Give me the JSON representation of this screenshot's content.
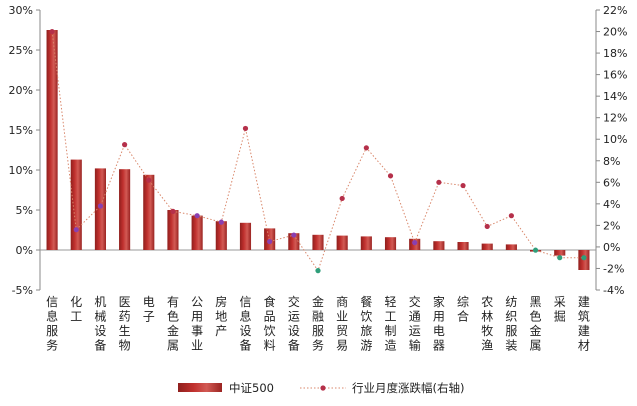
{
  "chart_data": {
    "type": "bar",
    "categories": [
      "信息服务",
      "化工",
      "机械设备",
      "医药生物",
      "电子",
      "有色金属",
      "公用事业",
      "房地产",
      "信息设备",
      "食品饮料",
      "交运设备",
      "金融服务",
      "商业贸易",
      "餐饮旅游",
      "轻工制造",
      "交通运输",
      "家用电器",
      "综合",
      "农林牧渔",
      "纺织服装",
      "黑色金属",
      "采掘",
      "建筑建材"
    ],
    "series": [
      {
        "name": "中证500",
        "type": "bar",
        "axis": "left",
        "color": "#c0302e",
        "values": [
          27.5,
          11.3,
          10.2,
          10.1,
          9.4,
          5.0,
          4.3,
          3.6,
          3.4,
          2.7,
          2.1,
          1.9,
          1.8,
          1.7,
          1.6,
          1.4,
          1.1,
          1.0,
          0.8,
          0.7,
          -0.2,
          -0.7,
          -2.5
        ]
      },
      {
        "name": "行业月度涨跌幅(右轴)",
        "type": "line",
        "axis": "right",
        "color": "#d9876b",
        "values": [
          20.0,
          1.6,
          3.8,
          9.5,
          6.2,
          3.3,
          2.9,
          2.3,
          11.0,
          0.5,
          1.1,
          -2.2,
          4.5,
          9.2,
          6.6,
          0.4,
          6.0,
          5.7,
          1.9,
          2.9,
          -0.3,
          -1.0,
          -1.0
        ],
        "marker_colors": [
          "#b5304a",
          "#8a3fb0",
          "#8a3fb0",
          "#b5304a",
          "#b5304a",
          "#b5304a",
          "#8a3fb0",
          "#8a3fb0",
          "#b5304a",
          "#8a3fb0",
          "#8a3fb0",
          "#2f9e7a",
          "#b5304a",
          "#b5304a",
          "#b5304a",
          "#8a3fb0",
          "#b5304a",
          "#b5304a",
          "#b5304a",
          "#b5304a",
          "#2f9e7a",
          "#2f9e7a",
          "#2f9e7a"
        ]
      }
    ],
    "y_left": {
      "min": -5,
      "max": 30,
      "step": 5,
      "tick_labels": [
        "-5%",
        "0%",
        "5%",
        "10%",
        "15%",
        "20%",
        "25%",
        "30%"
      ]
    },
    "y_right": {
      "min": -4,
      "max": 22,
      "step": 2,
      "tick_labels": [
        "-4%",
        "-2%",
        "0%",
        "2%",
        "4%",
        "6%",
        "8%",
        "10%",
        "12%",
        "14%",
        "16%",
        "18%",
        "20%",
        "22%"
      ]
    },
    "legend_position": "bottom",
    "grid": false
  }
}
